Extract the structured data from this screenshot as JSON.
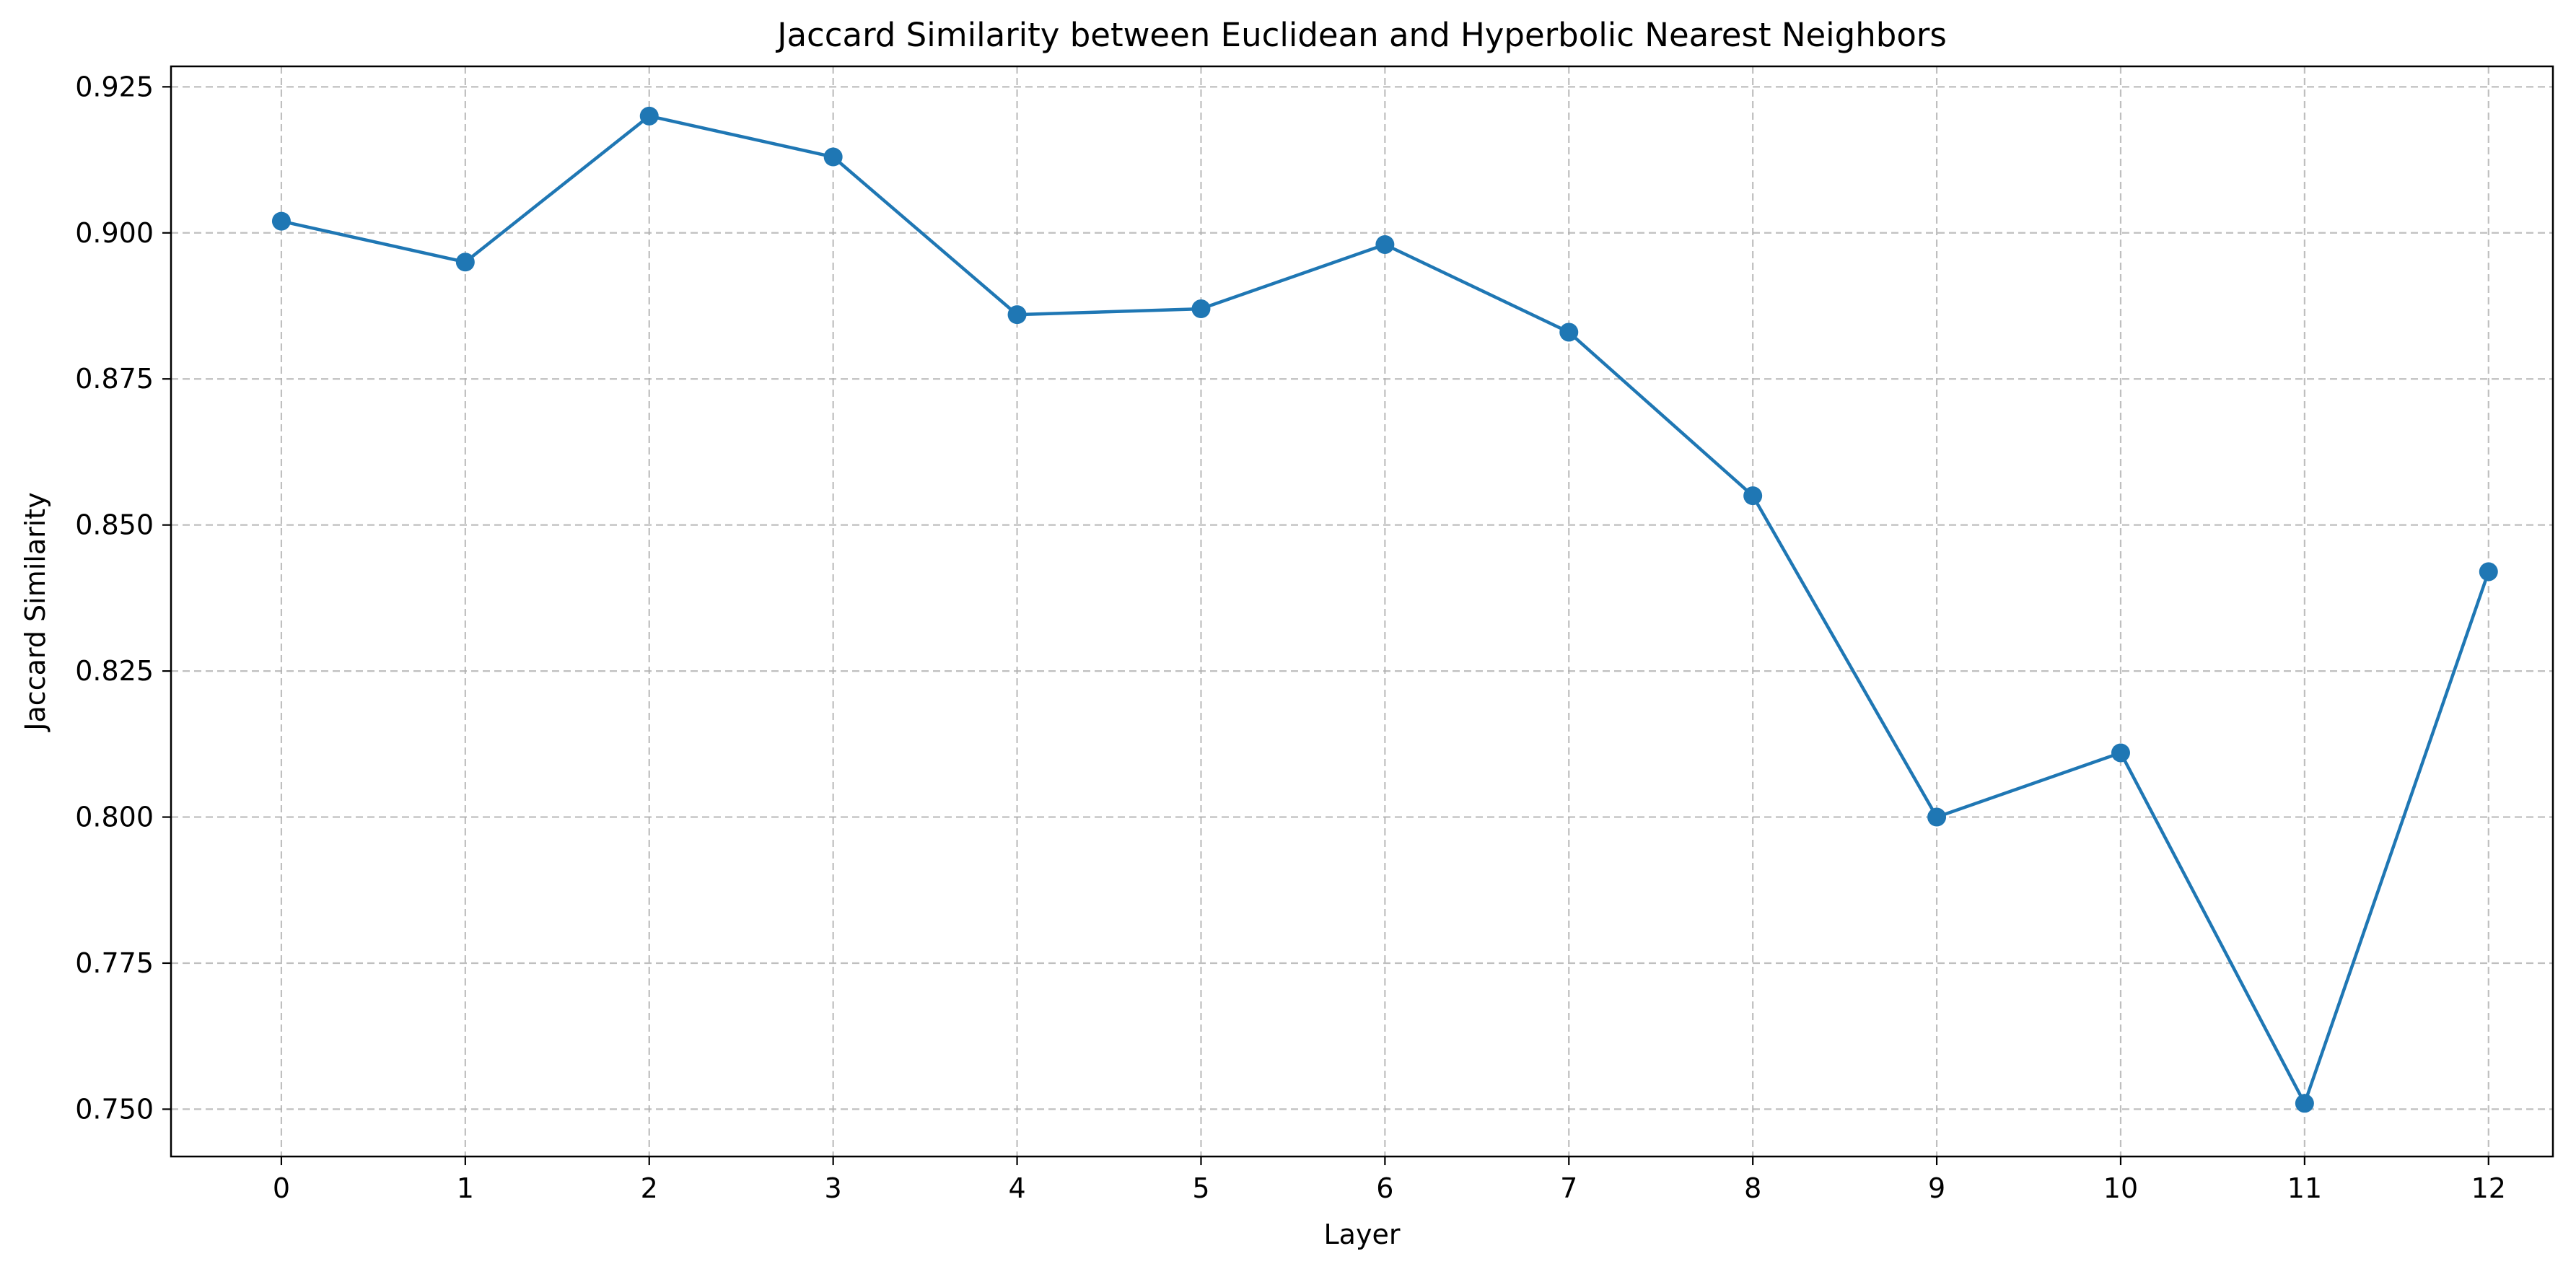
{
  "chart_data": {
    "type": "line",
    "title": "Jaccard Similarity between Euclidean and Hyperbolic Nearest Neighbors",
    "xlabel": "Layer",
    "ylabel": "Jaccard Similarity",
    "x": [
      0,
      1,
      2,
      3,
      4,
      5,
      6,
      7,
      8,
      9,
      10,
      11,
      12
    ],
    "x_tick_labels": [
      "0",
      "1",
      "2",
      "3",
      "4",
      "5",
      "6",
      "7",
      "8",
      "9",
      "10",
      "11",
      "12"
    ],
    "y_ticks": [
      0.75,
      0.775,
      0.8,
      0.825,
      0.85,
      0.875,
      0.9,
      0.925
    ],
    "y_tick_labels": [
      "0.750",
      "0.775",
      "0.800",
      "0.825",
      "0.850",
      "0.875",
      "0.900",
      "0.925"
    ],
    "xlim": [
      -0.6,
      12.35
    ],
    "ylim": [
      0.7419,
      0.9285
    ],
    "grid": true,
    "series": [
      {
        "color": "#1f77b4",
        "marker": "circle",
        "values": [
          0.902,
          0.895,
          0.92,
          0.913,
          0.886,
          0.887,
          0.898,
          0.883,
          0.855,
          0.8,
          0.811,
          0.751,
          0.842
        ]
      }
    ]
  }
}
